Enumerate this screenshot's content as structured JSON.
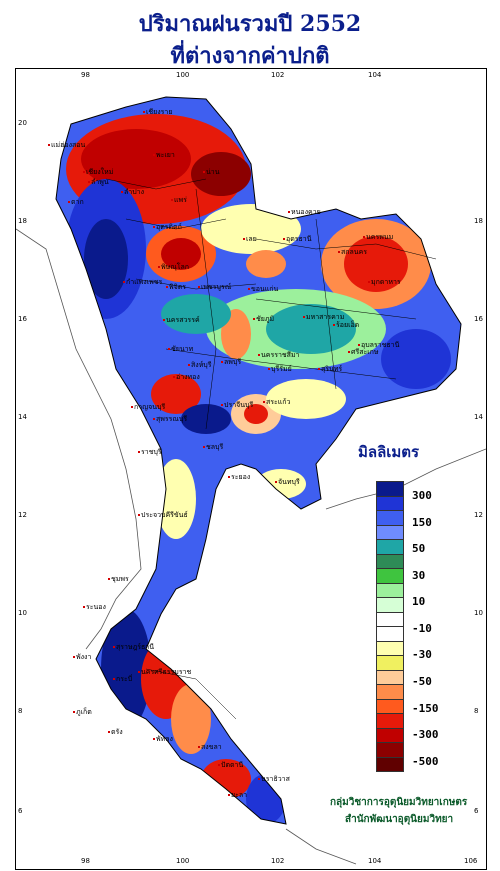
{
  "title_line1": "ปริมาณฝนรวมปี  2552",
  "title_line2": "ที่ต่างจากค่าปกติ",
  "legend": {
    "title": "มิลลิเมตร",
    "labels": [
      "300",
      "150",
      "50",
      "30",
      "10",
      "-10",
      "-30",
      "-50",
      "-150",
      "-300",
      "-500"
    ],
    "colors": [
      "#0a1a8c",
      "#1f34d6",
      "#3f5ff0",
      "#6f8cff",
      "#1fa6a6",
      "#2e8b57",
      "#3fc43f",
      "#9cf09c",
      "#d6ffd6",
      "#ffffff",
      "#ffffff",
      "#ffffb0",
      "#f0f060",
      "#ffcc99",
      "#ff8c4a",
      "#ff5a1e",
      "#e61a0a",
      "#c00000",
      "#8c0000",
      "#600000"
    ]
  },
  "axes": {
    "top_lon": [
      "98",
      "100",
      "102",
      "104"
    ],
    "bottom_lon": [
      "98",
      "100",
      "102",
      "104",
      "106"
    ],
    "left_lat": [
      "20",
      "18",
      "16",
      "14",
      "12",
      "10",
      "8",
      "6"
    ],
    "right_lat": [
      "18",
      "16",
      "14",
      "12",
      "10",
      "8",
      "6"
    ]
  },
  "provinces": [
    "เชียงราย",
    "แม่ฮ่องสอน",
    "เชียงใหม่",
    "ลำพูน",
    "น่าน",
    "พะเยา",
    "ลำปาง",
    "แพร่",
    "อุตรดิตถ์",
    "ตาก",
    "พิษณุโลก",
    "กำแพงเพชร",
    "พิจิตร",
    "เพชรบูรณ์",
    "นครสวรรค์",
    "ชัยนาท",
    "สิงห์บุรี",
    "กาญจนบุรี",
    "สุพรรณบุรี",
    "ลพบุรี",
    "หนองคาย",
    "อุดรธานี",
    "เลย",
    "นครพนม",
    "สกลนคร",
    "มุกดาหาร",
    "ขอนแก่น",
    "ชัยภูมิ",
    "มหาสารคาม",
    "ร้อยเอ็ด",
    "นครราชสีมา",
    "บุรีรัมย์",
    "สุรินทร์",
    "อุบลราชธานี",
    "ศรีสะเกษ",
    "ปราจีนบุรี",
    "สระแก้ว",
    "ชลบุรี",
    "ระยอง",
    "จันทบุรี",
    "ประจวบคีรีขันธ์",
    "ชุมพร",
    "ระนอง",
    "สุราษฎร์ธานี",
    "นครศรีธรรมราช",
    "กระบี่",
    "พังงา",
    "ภูเก็ต",
    "ตรัง",
    "พัทลุง",
    "สงขลา",
    "ปัตตานี",
    "นราธิวาส",
    "อ่างทอง",
    "ราชบุรี",
    "ยะลา"
  ],
  "credits": {
    "line1": "กลุ่มวิชาการอุตุนิยมวิทยาเกษตร",
    "line2": "สำนักพัฒนาอุตุนิยมวิทยา"
  }
}
